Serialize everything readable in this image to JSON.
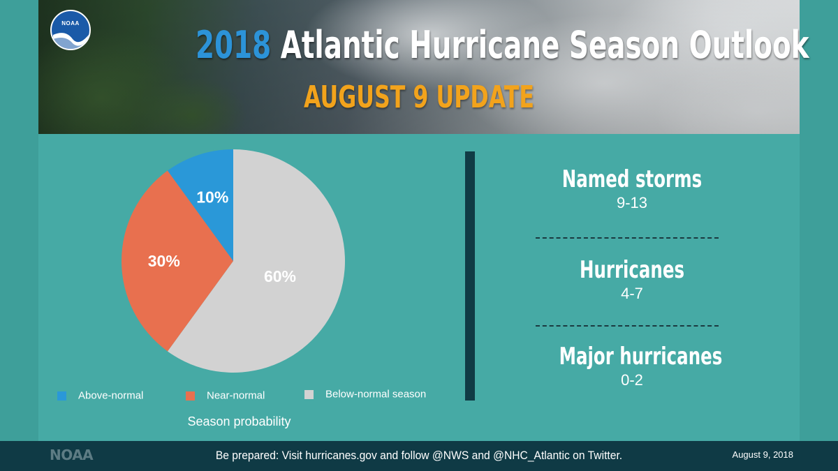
{
  "header": {
    "title_year": "2018",
    "title_main": "Atlantic Hurricane Season Outlook",
    "subtitle": "AUGUST 9 UPDATE",
    "logo_text": "NOAA"
  },
  "chart_data": {
    "type": "pie",
    "title": "",
    "caption": "Season probability",
    "start_angle_deg": 0,
    "direction": "clockwise",
    "slices": [
      {
        "label": "Below-normal season",
        "value": 60,
        "display": "60%",
        "color": "#d2d2d2"
      },
      {
        "label": "Near-normal",
        "value": 30,
        "display": "30%",
        "color": "#e8704f"
      },
      {
        "label": "Above-normal",
        "value": 10,
        "display": "10%",
        "color": "#2a98d8"
      }
    ],
    "legend": {
      "placement": "bottom",
      "items": [
        {
          "label": "Above-normal",
          "color": "#2a98d8"
        },
        {
          "label": "Near-normal",
          "color": "#e8704f"
        },
        {
          "label": "Below-normal season",
          "color": "#d2d2d2"
        }
      ]
    }
  },
  "stats": [
    {
      "label": "Named storms",
      "value": "9-13"
    },
    {
      "label": "Hurricanes",
      "value": "4-7"
    },
    {
      "label": "Major hurricanes",
      "value": "0-2"
    }
  ],
  "footer": {
    "logo": "NOAA",
    "message": "Be prepared: Visit hurricanes.gov and follow @NWS and @NHC_Atlantic on Twitter.",
    "date": "August 9, 2018"
  },
  "colors": {
    "background": "#46aaa5",
    "footer": "#0f3a45",
    "title_year": "#2c93d8",
    "subtitle": "#f2a31c"
  }
}
